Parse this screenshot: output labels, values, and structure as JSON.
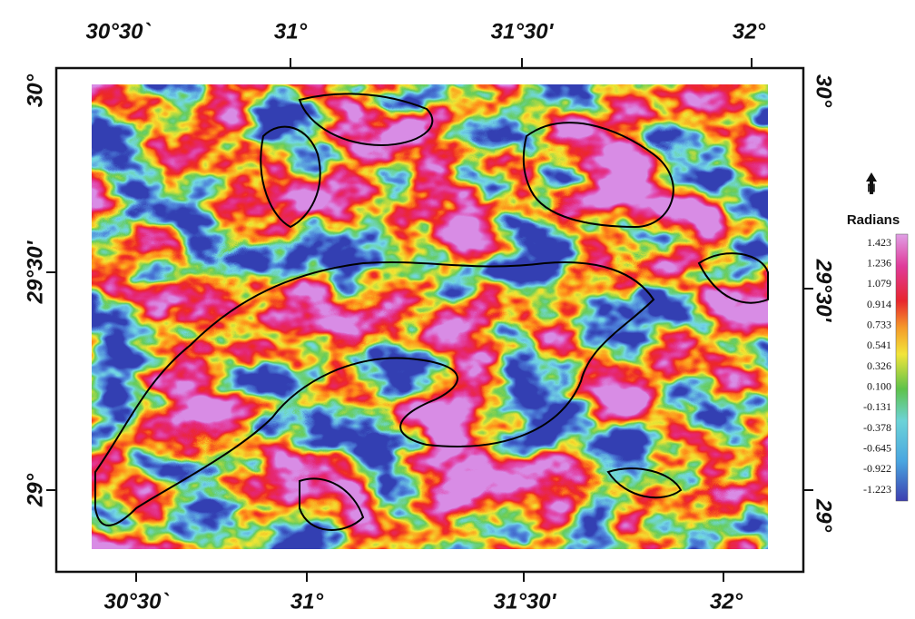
{
  "north": "N",
  "top_labels": [
    "30°30`",
    "31°",
    "31°30'",
    "32°"
  ],
  "bottom_labels": [
    "30°30`",
    "31°",
    "31°30'",
    "32°"
  ],
  "left_labels": [
    "30°",
    "29°30'",
    "29°"
  ],
  "right_labels": [
    "30°",
    "29°30'",
    "29°"
  ],
  "legend": {
    "title": "Radians",
    "values": [
      "1.423",
      "1.236",
      "1.079",
      "0.914",
      "0.733",
      "0.541",
      "0.326",
      "0.100",
      "-0.131",
      "-0.378",
      "-0.645",
      "-0.922",
      "-1.223"
    ]
  }
}
